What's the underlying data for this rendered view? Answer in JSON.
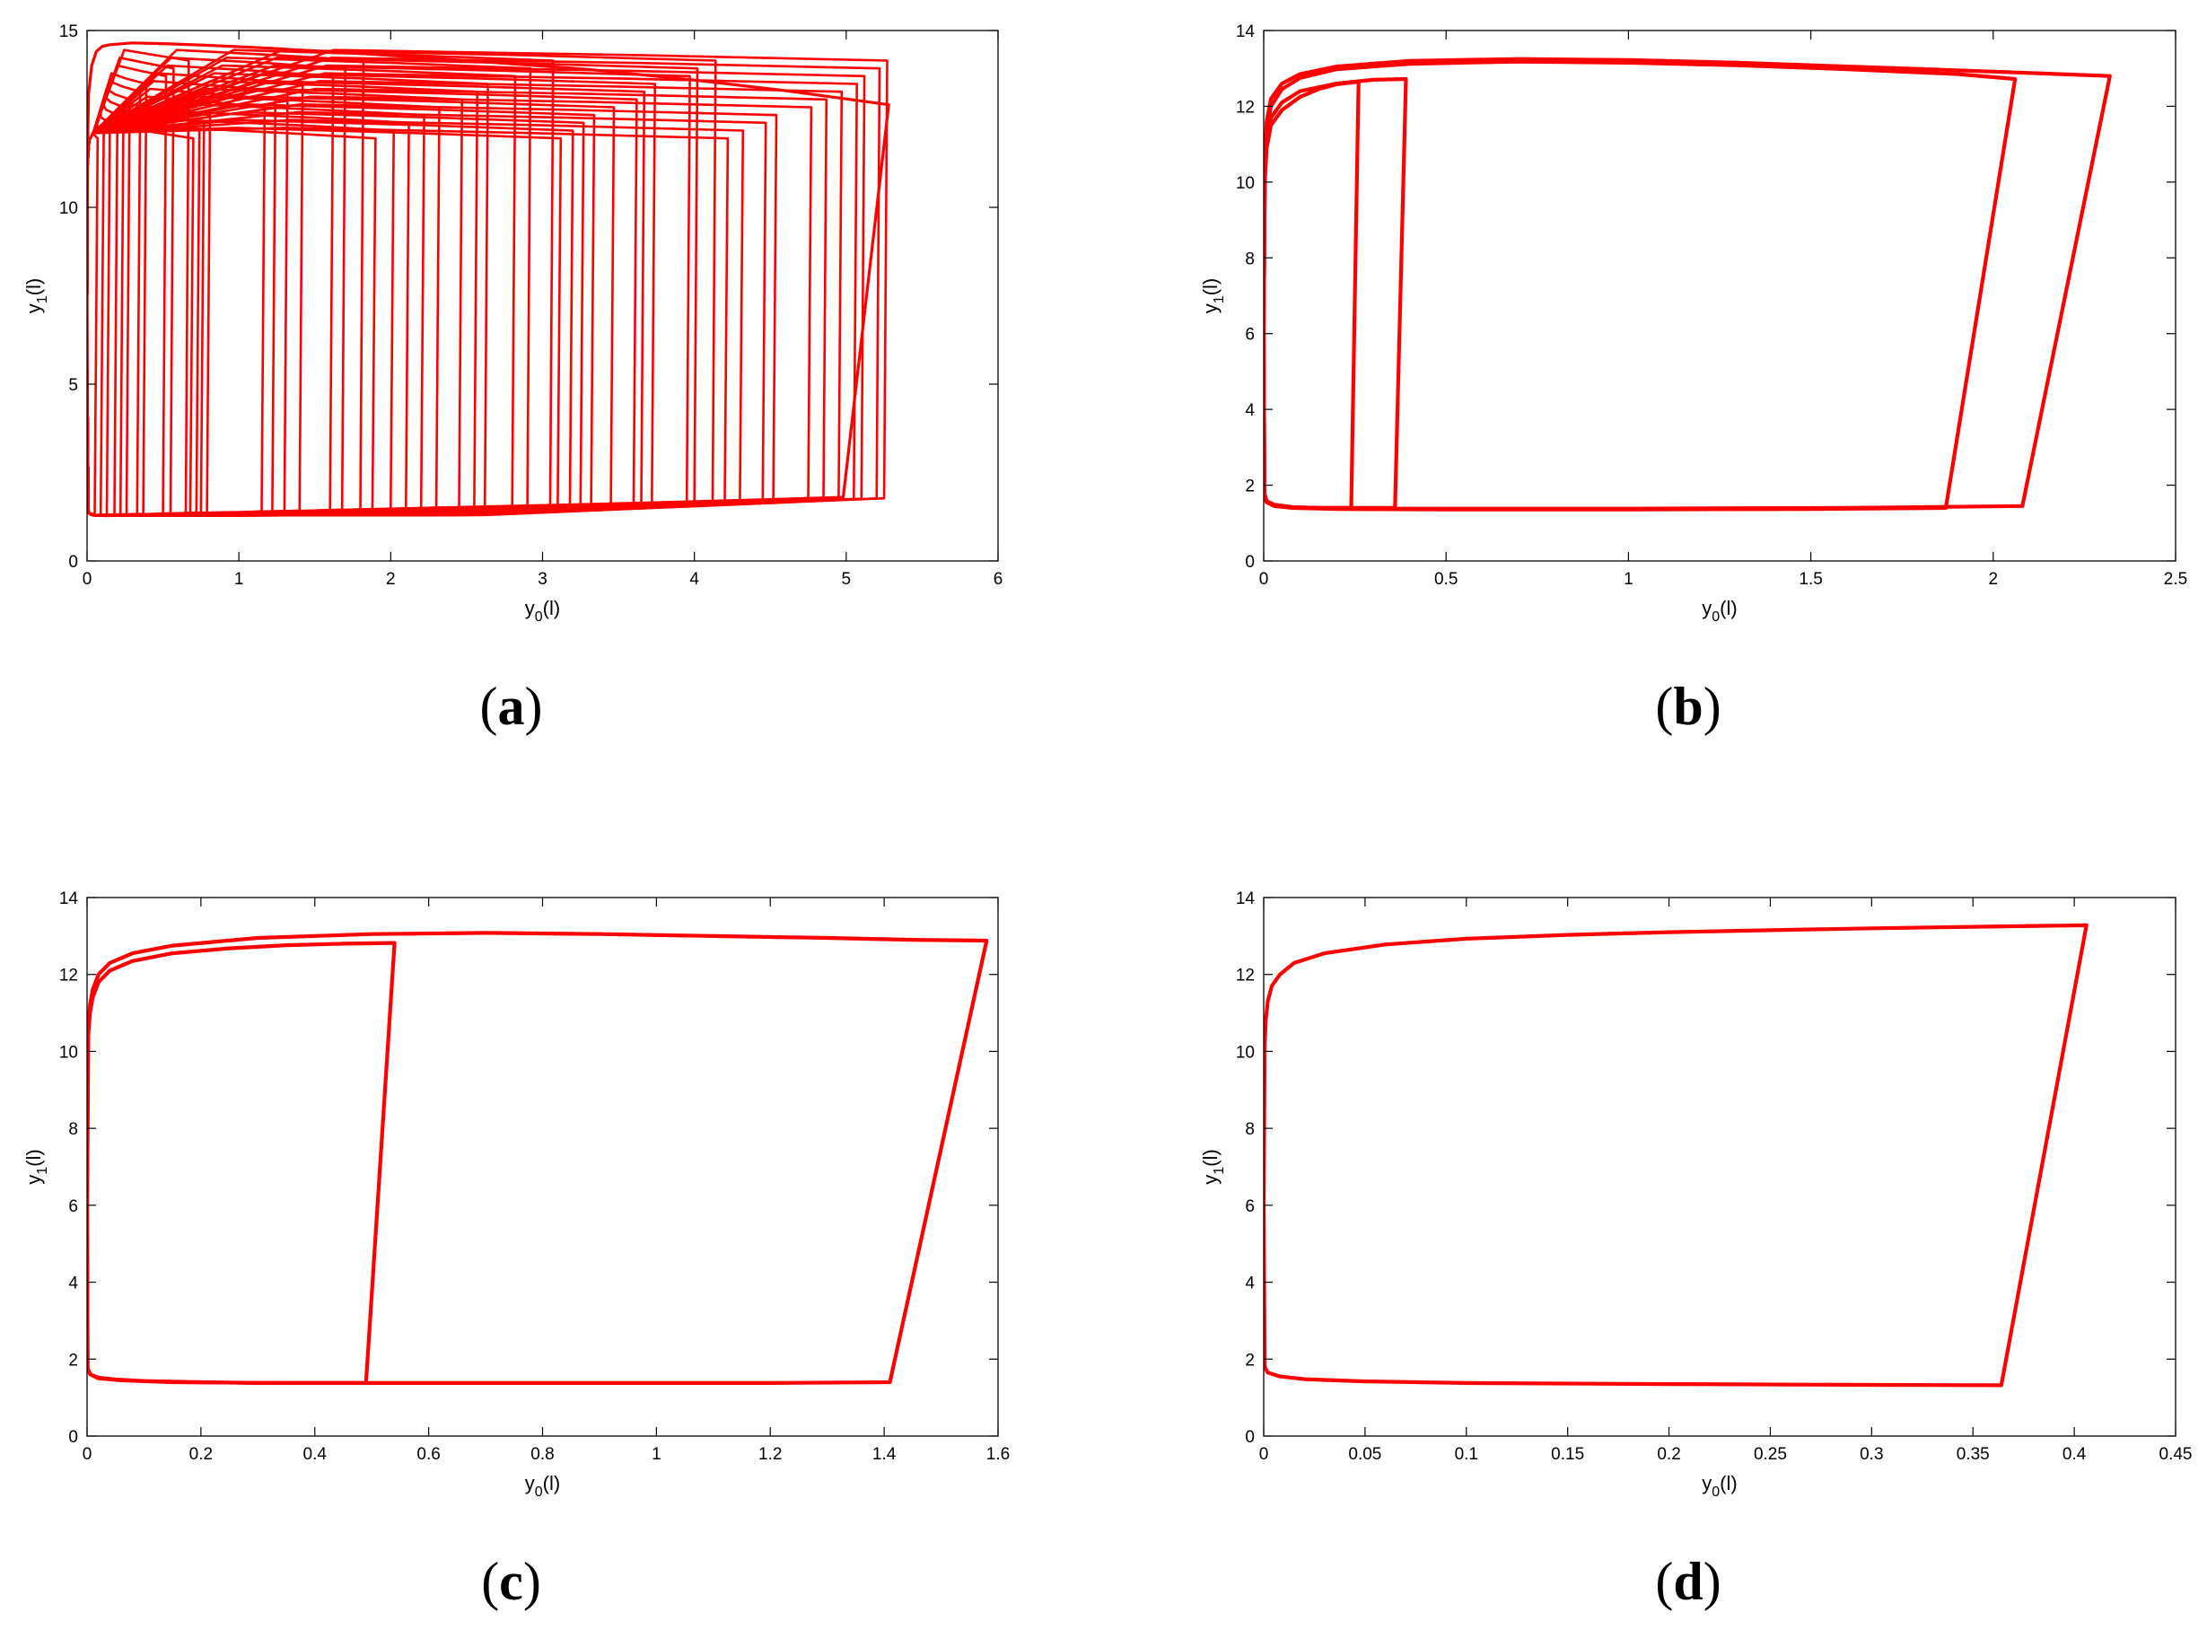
{
  "chart_data": [
    {
      "panel": "(a)",
      "type": "line",
      "xlabel": "y0(l)",
      "ylabel": "y1(l)",
      "xlim": [
        0,
        6
      ],
      "ylim": [
        0,
        15
      ],
      "xticks": [
        0,
        1,
        2,
        3,
        4,
        5,
        6
      ],
      "yticks": [
        0,
        5,
        10,
        15
      ],
      "grid": false,
      "color": "#ff0000",
      "drop_x": [
        0.05,
        0.09,
        0.13,
        0.18,
        0.22,
        0.26,
        0.33,
        0.37,
        0.5,
        0.55,
        0.65,
        0.68,
        0.72,
        0.75,
        0.79,
        1.15,
        1.22,
        1.3,
        1.4,
        1.6,
        1.68,
        1.8,
        1.88,
        2.0,
        2.1,
        2.2,
        2.3,
        2.45,
        2.55,
        2.62,
        2.8,
        2.9,
        3.05,
        3.1,
        3.18,
        3.25,
        3.32,
        3.45,
        3.6,
        3.65,
        3.72,
        3.95,
        4.0,
        4.12,
        4.2,
        4.3,
        4.45,
        4.52,
        4.75,
        4.85,
        4.95,
        5.05,
        5.1,
        5.2,
        5.25
      ],
      "series": [
        {
          "x": [
            0.0,
            0.005,
            0.01,
            0.03,
            0.06,
            0.1,
            0.15,
            0.3,
            0.5,
            0.8,
            1.2,
            1.8,
            2.5,
            3.3,
            4.0,
            4.6,
            5.28,
            4.98,
            4.2,
            3.3,
            2.3,
            1.3,
            0.7,
            0.3,
            0.12,
            0.05,
            0.015,
            0.004,
            0.0
          ],
          "y": [
            8.0,
            12.0,
            13.2,
            14.0,
            14.4,
            14.55,
            14.6,
            14.65,
            14.63,
            14.58,
            14.5,
            14.35,
            14.15,
            13.9,
            13.6,
            13.3,
            12.9,
            1.8,
            1.7,
            1.6,
            1.5,
            1.4,
            1.35,
            1.3,
            1.28,
            1.3,
            1.35,
            1.5,
            8.0
          ]
        }
      ]
    },
    {
      "panel": "(b)",
      "type": "line",
      "xlabel": "y0(l)",
      "ylabel": "y1(l)",
      "xlim": [
        0,
        2.5
      ],
      "ylim": [
        0,
        14
      ],
      "xticks": [
        0,
        0.5,
        1,
        1.5,
        2,
        2.5
      ],
      "yticks": [
        0,
        2,
        4,
        6,
        8,
        10,
        12,
        14
      ],
      "grid": false,
      "color": "#ff0000",
      "series": [
        {
          "x": [
            0.0,
            0.003,
            0.008,
            0.02,
            0.05,
            0.1,
            0.2,
            0.4,
            0.7,
            1.0,
            1.3,
            1.6,
            1.9,
            2.1,
            2.32,
            2.08,
            1.6,
            1.0,
            0.5,
            0.2,
            0.08,
            0.03,
            0.008,
            0.002,
            0.0
          ],
          "y": [
            6.0,
            10.6,
            11.6,
            12.2,
            12.6,
            12.85,
            13.05,
            13.2,
            13.25,
            13.22,
            13.15,
            13.05,
            12.95,
            12.88,
            12.8,
            1.45,
            1.4,
            1.38,
            1.38,
            1.38,
            1.4,
            1.45,
            1.55,
            1.75,
            6.0
          ]
        },
        {
          "x": [
            0.0,
            0.003,
            0.008,
            0.02,
            0.05,
            0.1,
            0.2,
            0.4,
            0.7,
            1.0,
            1.3,
            1.6,
            1.9,
            2.06,
            1.87,
            1.5,
            1.0,
            0.5,
            0.2,
            0.08,
            0.03,
            0.008,
            0.002,
            0.0
          ],
          "y": [
            6.0,
            10.4,
            11.4,
            12.0,
            12.45,
            12.75,
            12.98,
            13.12,
            13.18,
            13.15,
            13.08,
            12.98,
            12.85,
            12.72,
            1.4,
            1.37,
            1.36,
            1.36,
            1.37,
            1.4,
            1.45,
            1.55,
            1.75,
            6.0
          ]
        },
        {
          "x": [
            0.0,
            0.003,
            0.008,
            0.02,
            0.05,
            0.1,
            0.2,
            0.3,
            0.39,
            0.36,
            0.25,
            0.15,
            0.08,
            0.03,
            0.008,
            0.002,
            0.0
          ],
          "y": [
            6.0,
            10.2,
            11.1,
            11.7,
            12.1,
            12.4,
            12.6,
            12.7,
            12.72,
            1.4,
            1.4,
            1.4,
            1.42,
            1.48,
            1.58,
            1.78,
            6.0
          ]
        },
        {
          "x": [
            0.0,
            0.003,
            0.008,
            0.02,
            0.05,
            0.1,
            0.15,
            0.2,
            0.26,
            0.24,
            0.15,
            0.08,
            0.03,
            0.008,
            0.002,
            0.0
          ],
          "y": [
            6.0,
            10.0,
            10.9,
            11.5,
            11.9,
            12.25,
            12.45,
            12.58,
            12.65,
            1.4,
            1.4,
            1.42,
            1.48,
            1.58,
            1.78,
            6.0
          ]
        }
      ]
    },
    {
      "panel": "(c)",
      "type": "line",
      "xlabel": "y0(l)",
      "ylabel": "y1(l)",
      "xlim": [
        0,
        1.6
      ],
      "ylim": [
        0,
        14
      ],
      "xticks": [
        0,
        0.2,
        0.4,
        0.6,
        0.8,
        1,
        1.2,
        1.4,
        1.6
      ],
      "yticks": [
        0,
        2,
        4,
        6,
        8,
        10,
        12,
        14
      ],
      "grid": false,
      "color": "#ff0000",
      "series": [
        {
          "x": [
            0.0,
            0.002,
            0.005,
            0.01,
            0.02,
            0.04,
            0.08,
            0.15,
            0.3,
            0.5,
            0.7,
            0.9,
            1.1,
            1.3,
            1.45,
            1.58,
            1.41,
            1.2,
            0.9,
            0.6,
            0.35,
            0.15,
            0.06,
            0.02,
            0.006,
            0.001,
            0.0
          ],
          "y": [
            6.0,
            10.6,
            11.2,
            11.6,
            12.0,
            12.3,
            12.55,
            12.75,
            12.95,
            13.05,
            13.08,
            13.05,
            13.0,
            12.95,
            12.9,
            12.88,
            1.4,
            1.38,
            1.38,
            1.38,
            1.38,
            1.4,
            1.45,
            1.5,
            1.6,
            1.75,
            6.0
          ]
        },
        {
          "x": [
            0.0,
            0.002,
            0.005,
            0.01,
            0.02,
            0.04,
            0.08,
            0.15,
            0.25,
            0.35,
            0.45,
            0.54,
            0.49,
            0.4,
            0.3,
            0.2,
            0.1,
            0.05,
            0.02,
            0.006,
            0.001,
            0.0
          ],
          "y": [
            6.0,
            10.4,
            11.0,
            11.4,
            11.8,
            12.1,
            12.35,
            12.55,
            12.68,
            12.76,
            12.8,
            12.82,
            1.38,
            1.38,
            1.38,
            1.4,
            1.43,
            1.47,
            1.52,
            1.6,
            1.75,
            6.0
          ]
        }
      ]
    },
    {
      "panel": "(d)",
      "type": "line",
      "xlabel": "y0(l)",
      "ylabel": "y1(l)",
      "xlim": [
        0,
        0.45
      ],
      "ylim": [
        0,
        14
      ],
      "xticks": [
        0,
        0.05,
        0.1,
        0.15,
        0.2,
        0.25,
        0.3,
        0.35,
        0.4,
        0.45
      ],
      "yticks": [
        0,
        2,
        4,
        6,
        8,
        10,
        12,
        14
      ],
      "grid": false,
      "color": "#ff0000",
      "series": [
        {
          "x": [
            0.0,
            0.0005,
            0.001,
            0.002,
            0.004,
            0.008,
            0.015,
            0.03,
            0.06,
            0.1,
            0.15,
            0.2,
            0.25,
            0.3,
            0.35,
            0.406,
            0.364,
            0.3,
            0.2,
            0.1,
            0.05,
            0.02,
            0.008,
            0.002,
            0.0005,
            0.0
          ],
          "y": [
            6.0,
            10.2,
            10.8,
            11.3,
            11.7,
            12.0,
            12.3,
            12.55,
            12.78,
            12.93,
            13.03,
            13.1,
            13.15,
            13.2,
            13.24,
            13.28,
            1.32,
            1.33,
            1.35,
            1.38,
            1.42,
            1.48,
            1.55,
            1.65,
            1.8,
            6.0
          ]
        }
      ]
    }
  ]
}
